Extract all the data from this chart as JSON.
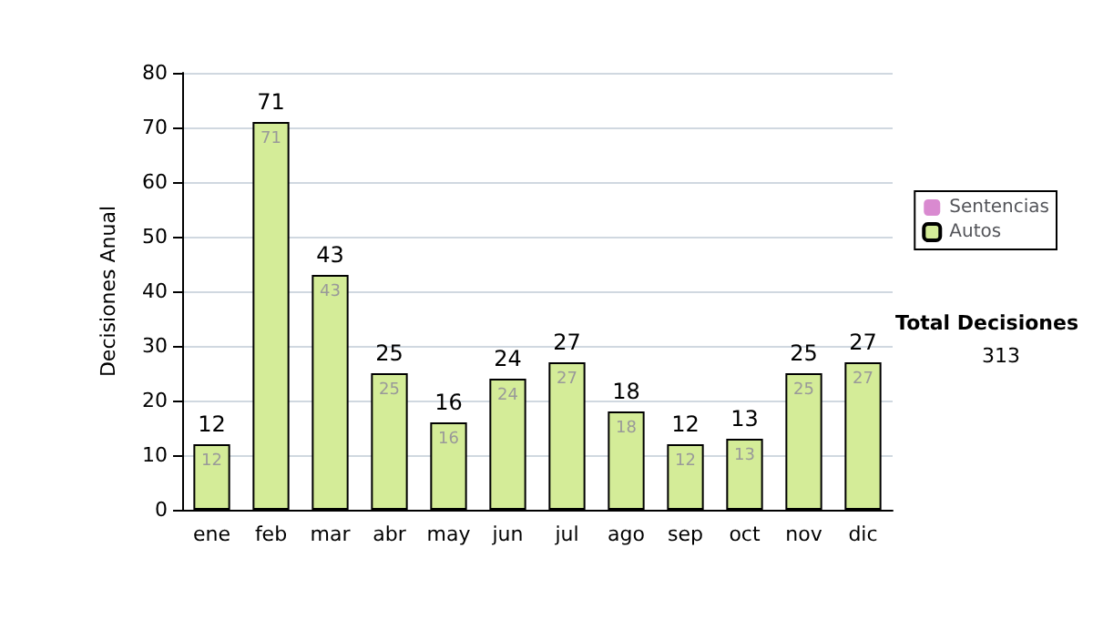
{
  "chart_data": {
    "type": "bar",
    "ylabel": "Decisiones Anual",
    "categories": [
      "ene",
      "feb",
      "mar",
      "abr",
      "may",
      "jun",
      "jul",
      "ago",
      "sep",
      "oct",
      "nov",
      "dic"
    ],
    "stacked": true,
    "series": [
      {
        "name": "Autos",
        "color": "#d4ec98",
        "values": [
          12,
          71,
          43,
          25,
          16,
          24,
          27,
          18,
          12,
          13,
          25,
          27
        ],
        "value_labels": [
          "12",
          "71",
          "43",
          "25",
          "16",
          "24",
          "27",
          "18",
          "12",
          "13",
          "25",
          "27"
        ]
      },
      {
        "name": "Sentencias",
        "color": "#d98ad0",
        "values": [
          0,
          0,
          0,
          0,
          0,
          0,
          0,
          0,
          0,
          0,
          0,
          0
        ]
      }
    ],
    "totals": [
      "12",
      "71",
      "43",
      "25",
      "16",
      "24",
      "27",
      "18",
      "12",
      "13",
      "25",
      "27"
    ],
    "ylim": [
      0,
      80
    ],
    "yticks": [
      0,
      10,
      20,
      30,
      40,
      50,
      60,
      70,
      80
    ],
    "grid": "y",
    "legend": "right",
    "annotations": [
      "Total Decisiones",
      "313"
    ]
  }
}
